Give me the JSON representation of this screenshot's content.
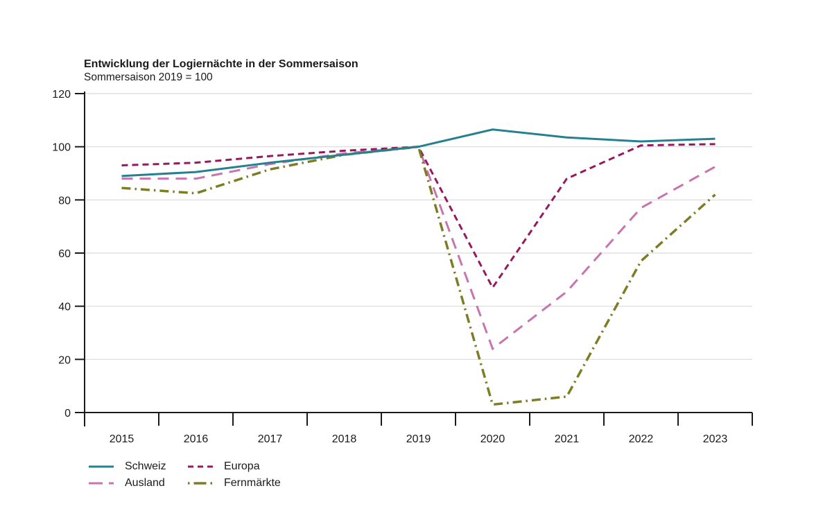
{
  "chart": {
    "title": "Entwicklung der Logiernächte in der Sommersaison",
    "subtitle": "Sommersaison 2019 = 100"
  },
  "chart_data": {
    "type": "line",
    "title": "Entwicklung der Logiernächte in der Sommersaison",
    "subtitle": "Sommersaison 2019 = 100",
    "categories": [
      "2015",
      "2016",
      "2017",
      "2018",
      "2019",
      "2020",
      "2021",
      "2022",
      "2023"
    ],
    "series": [
      {
        "name": "Schweiz",
        "color": "#26818F",
        "dash": "solid",
        "values": [
          89,
          90.5,
          94,
          97,
          100,
          106.5,
          103.5,
          102,
          103
        ]
      },
      {
        "name": "Europa",
        "color": "#95195F",
        "dash": "dashed",
        "values": [
          93,
          94,
          96.5,
          98.5,
          100,
          47,
          88,
          100.5,
          101
        ]
      },
      {
        "name": "Ausland",
        "color": "#C973AF",
        "dash": "long-dash",
        "values": [
          88,
          88,
          93.5,
          97.5,
          100,
          24,
          45.5,
          77,
          92.5
        ]
      },
      {
        "name": "Fernmärkte",
        "color": "#7D7D26",
        "dash": "dash-dot",
        "values": [
          84.5,
          82.5,
          91.5,
          97,
          100,
          3,
          6,
          57,
          82
        ]
      }
    ],
    "xlabel": "",
    "ylabel": "",
    "ylim": [
      0,
      120
    ],
    "yticks": [
      0,
      20,
      40,
      60,
      80,
      100,
      120
    ],
    "grid": true,
    "legend_position": "bottom-left",
    "axis_color": "#1a1a1a",
    "grid_color": "#d9d9d9",
    "tick_label_color": "#1a1a1a"
  }
}
